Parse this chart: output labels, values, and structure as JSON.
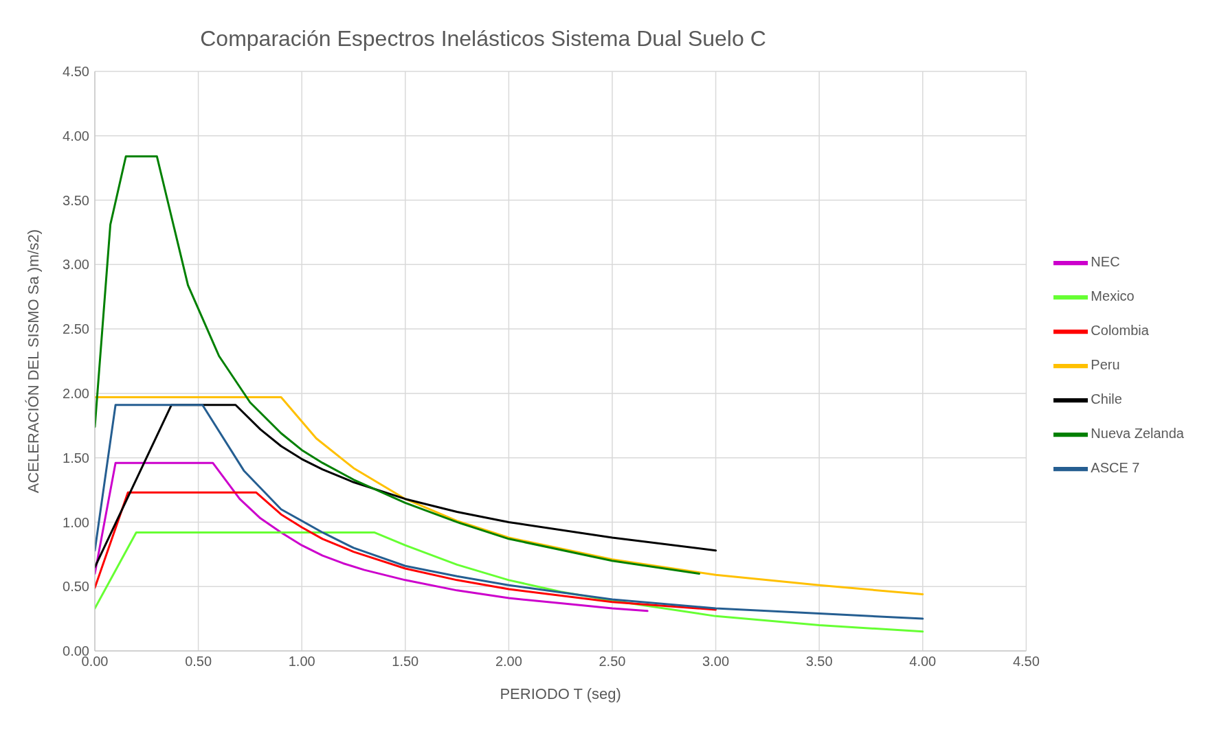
{
  "chart_data": {
    "type": "line",
    "title": "Comparación Espectros Inelásticos Sistema Dual Suelo C",
    "xlabel": "PERIODO T (seg)",
    "ylabel": "ACELERACIÓN DEL SISMO Sa )m/s2)",
    "xlim": [
      0,
      4.5
    ],
    "ylim": [
      0,
      4.5
    ],
    "xticks": [
      {
        "value": 0,
        "label": "0.00"
      },
      {
        "value": 0.5,
        "label": "0.50"
      },
      {
        "value": 1,
        "label": "1.00"
      },
      {
        "value": 1.5,
        "label": "1.50"
      },
      {
        "value": 2,
        "label": "2.00"
      },
      {
        "value": 2.5,
        "label": "2.50"
      },
      {
        "value": 3,
        "label": "3.00"
      },
      {
        "value": 3.5,
        "label": "3.50"
      },
      {
        "value": 4,
        "label": "4.00"
      },
      {
        "value": 4.5,
        "label": "4.50"
      }
    ],
    "yticks": [
      {
        "value": 0,
        "label": "0.00"
      },
      {
        "value": 0.5,
        "label": "0.50"
      },
      {
        "value": 1,
        "label": "1.00"
      },
      {
        "value": 1.5,
        "label": "1.50"
      },
      {
        "value": 2,
        "label": "2.00"
      },
      {
        "value": 2.5,
        "label": "2.50"
      },
      {
        "value": 3,
        "label": "3.00"
      },
      {
        "value": 3.5,
        "label": "3.50"
      },
      {
        "value": 4,
        "label": "4.00"
      },
      {
        "value": 4.5,
        "label": "4.50"
      }
    ],
    "grid": true,
    "legend": "right",
    "marker": "none",
    "line_style": "solid",
    "series": [
      {
        "name": "NEC",
        "color": "#cc00cc",
        "x": [
          0,
          0.1,
          0.57,
          0.7,
          0.8,
          0.9,
          1.0,
          1.1,
          1.2,
          1.3,
          1.5,
          1.75,
          2.0,
          2.25,
          2.5,
          2.67
        ],
        "values": [
          0.6,
          1.46,
          1.46,
          1.18,
          1.03,
          0.92,
          0.82,
          0.74,
          0.68,
          0.63,
          0.55,
          0.47,
          0.41,
          0.37,
          0.33,
          0.31
        ]
      },
      {
        "name": "Mexico",
        "color": "#66ff33",
        "x": [
          0,
          0.2,
          1.35,
          1.5,
          1.75,
          2.0,
          2.25,
          2.5,
          3.0,
          3.5,
          4.0
        ],
        "values": [
          0.33,
          0.92,
          0.92,
          0.82,
          0.67,
          0.55,
          0.46,
          0.39,
          0.27,
          0.2,
          0.15
        ]
      },
      {
        "name": "Colombia",
        "color": "#ff0000",
        "x": [
          0,
          0.16,
          0.78,
          0.9,
          1.0,
          1.1,
          1.25,
          1.5,
          1.75,
          2.0,
          2.5,
          3.0
        ],
        "values": [
          0.49,
          1.23,
          1.23,
          1.06,
          0.96,
          0.87,
          0.77,
          0.64,
          0.55,
          0.48,
          0.38,
          0.32
        ]
      },
      {
        "name": "Peru",
        "color": "#ffc000",
        "x": [
          0,
          0.9,
          1.07,
          1.25,
          1.5,
          1.75,
          2.0,
          2.5,
          3.0,
          3.5,
          4.0
        ],
        "values": [
          1.97,
          1.97,
          1.65,
          1.42,
          1.18,
          1.01,
          0.88,
          0.71,
          0.59,
          0.51,
          0.44
        ]
      },
      {
        "name": "Chile",
        "color": "#000000",
        "x": [
          0,
          0.37,
          0.68,
          0.8,
          0.9,
          1.0,
          1.1,
          1.25,
          1.5,
          1.75,
          2.0,
          2.5,
          3.0
        ],
        "values": [
          0.65,
          1.91,
          1.91,
          1.72,
          1.59,
          1.49,
          1.41,
          1.31,
          1.18,
          1.08,
          1.0,
          0.88,
          0.78
        ]
      },
      {
        "name": "Nueva Zelanda",
        "color": "#008000",
        "x": [
          0,
          0.075,
          0.15,
          0.2,
          0.3,
          0.45,
          0.6,
          0.75,
          0.9,
          1.0,
          1.1,
          1.25,
          1.5,
          1.75,
          2.0,
          2.5,
          2.92
        ],
        "values": [
          1.74,
          3.31,
          3.84,
          3.84,
          3.84,
          2.84,
          2.29,
          1.93,
          1.69,
          1.56,
          1.46,
          1.33,
          1.15,
          1.0,
          0.87,
          0.7,
          0.6
        ]
      },
      {
        "name": "ASCE 7",
        "color": "#255e91",
        "x": [
          0,
          0.1,
          0.52,
          0.72,
          0.9,
          1.1,
          1.25,
          1.5,
          1.75,
          2.0,
          2.5,
          3.0,
          3.5,
          4.0
        ],
        "values": [
          0.78,
          1.91,
          1.91,
          1.4,
          1.1,
          0.92,
          0.8,
          0.66,
          0.58,
          0.51,
          0.4,
          0.33,
          0.29,
          0.25
        ]
      }
    ]
  }
}
